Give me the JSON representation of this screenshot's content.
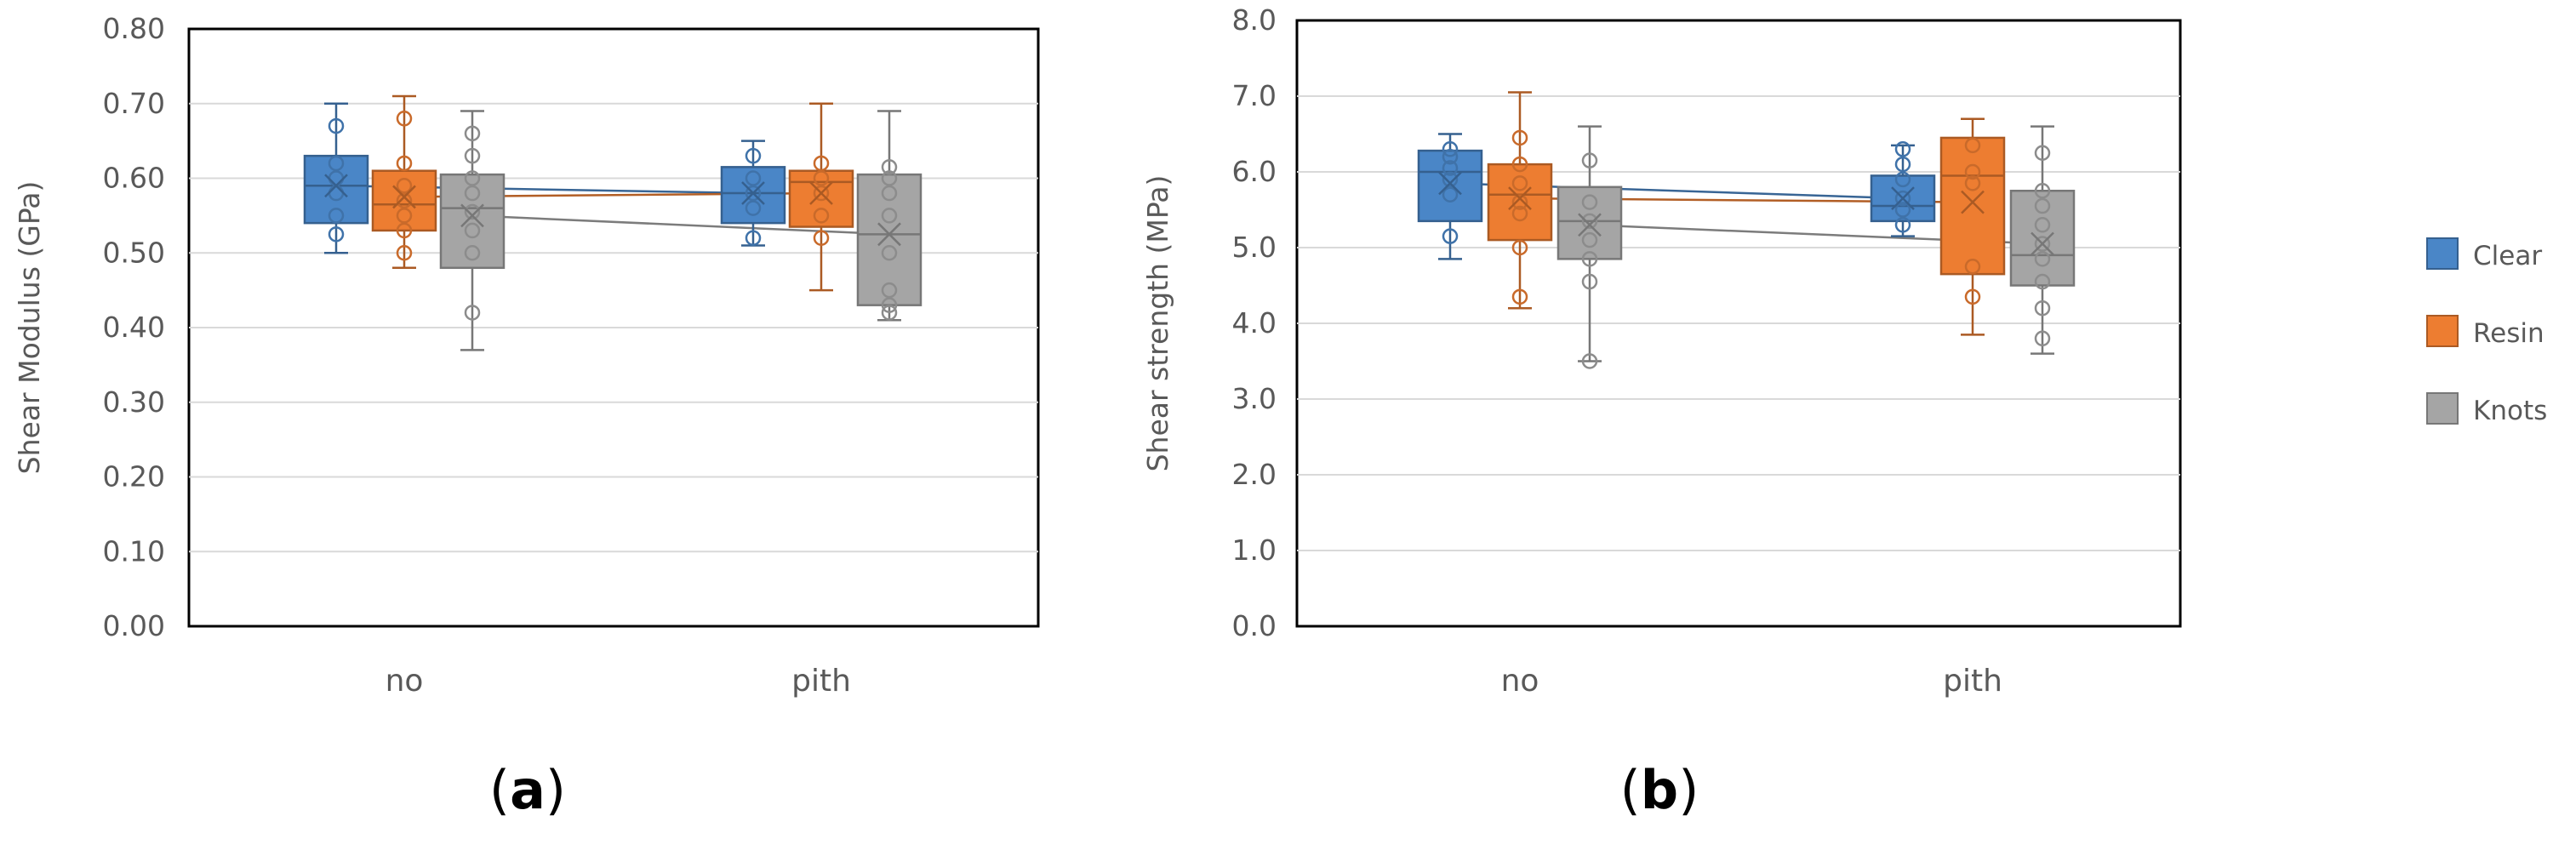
{
  "colors": {
    "Clear": "#4a86c7",
    "Resin": "#ed7d31",
    "Knots": "#a5a5a5"
  },
  "legend": [
    "Clear",
    "Resin",
    "Knots"
  ],
  "chart_data": [
    {
      "type": "box",
      "panel_label": "a",
      "ylabel": "Shear Modulus (GPa)",
      "ylim": [
        0.0,
        0.8
      ],
      "yticks": [
        0.0,
        0.1,
        0.2,
        0.3,
        0.4,
        0.5,
        0.6,
        0.7,
        0.8
      ],
      "ytick_labels": [
        "0.00",
        "0.10",
        "0.20",
        "0.30",
        "0.40",
        "0.50",
        "0.60",
        "0.70",
        "0.80"
      ],
      "categories": [
        "no",
        "pith"
      ],
      "series": [
        {
          "name": "Clear",
          "boxes": [
            {
              "min": 0.5,
              "q1": 0.54,
              "median": 0.59,
              "q3": 0.63,
              "max": 0.7,
              "mean": 0.59,
              "points": [
                0.525,
                0.55,
                0.58,
                0.6,
                0.62,
                0.67
              ]
            },
            {
              "min": 0.51,
              "q1": 0.54,
              "median": 0.58,
              "q3": 0.615,
              "max": 0.65,
              "mean": 0.58,
              "points": [
                0.52,
                0.56,
                0.58,
                0.6,
                0.63
              ]
            }
          ]
        },
        {
          "name": "Resin",
          "boxes": [
            {
              "min": 0.48,
              "q1": 0.53,
              "median": 0.565,
              "q3": 0.61,
              "max": 0.71,
              "mean": 0.575,
              "points": [
                0.5,
                0.53,
                0.55,
                0.57,
                0.59,
                0.62,
                0.68
              ]
            },
            {
              "min": 0.45,
              "q1": 0.535,
              "median": 0.595,
              "q3": 0.61,
              "max": 0.7,
              "mean": 0.58,
              "points": [
                0.52,
                0.55,
                0.58,
                0.6,
                0.62
              ]
            }
          ]
        },
        {
          "name": "Knots",
          "boxes": [
            {
              "min": 0.37,
              "q1": 0.48,
              "median": 0.56,
              "q3": 0.605,
              "max": 0.69,
              "mean": 0.55,
              "points": [
                0.42,
                0.5,
                0.53,
                0.555,
                0.58,
                0.6,
                0.63,
                0.66
              ]
            },
            {
              "min": 0.41,
              "q1": 0.43,
              "median": 0.525,
              "q3": 0.605,
              "max": 0.69,
              "mean": 0.525,
              "points": [
                0.42,
                0.43,
                0.45,
                0.5,
                0.55,
                0.58,
                0.6,
                0.615
              ]
            }
          ]
        }
      ]
    },
    {
      "type": "box",
      "panel_label": "b",
      "ylabel": "Shear strength (MPa)",
      "ylim": [
        0.0,
        8.0
      ],
      "yticks": [
        0.0,
        1.0,
        2.0,
        3.0,
        4.0,
        5.0,
        6.0,
        7.0,
        8.0
      ],
      "ytick_labels": [
        "0.0",
        "1.0",
        "2.0",
        "3.0",
        "4.0",
        "5.0",
        "6.0",
        "7.0",
        "8.0"
      ],
      "categories": [
        "no",
        "pith"
      ],
      "series": [
        {
          "name": "Clear",
          "boxes": [
            {
              "min": 4.85,
              "q1": 5.35,
              "median": 6.0,
              "q3": 6.28,
              "max": 6.5,
              "mean": 5.85,
              "points": [
                5.15,
                5.7,
                5.9,
                6.05,
                6.2,
                6.3
              ]
            },
            {
              "min": 5.15,
              "q1": 5.35,
              "median": 5.55,
              "q3": 5.95,
              "max": 6.35,
              "mean": 5.65,
              "points": [
                5.3,
                5.5,
                5.65,
                5.9,
                6.1,
                6.3
              ]
            }
          ]
        },
        {
          "name": "Resin",
          "boxes": [
            {
              "min": 4.2,
              "q1": 5.1,
              "median": 5.7,
              "q3": 6.1,
              "max": 7.05,
              "mean": 5.65,
              "points": [
                4.35,
                5.0,
                5.45,
                5.6,
                5.85,
                6.1,
                6.45
              ]
            },
            {
              "min": 3.85,
              "q1": 4.65,
              "median": 5.95,
              "q3": 6.45,
              "max": 6.7,
              "mean": 5.6,
              "points": [
                4.35,
                4.75,
                5.85,
                6.0,
                6.35
              ]
            }
          ]
        },
        {
          "name": "Knots",
          "boxes": [
            {
              "min": 3.5,
              "q1": 4.85,
              "median": 5.35,
              "q3": 5.8,
              "max": 6.6,
              "mean": 5.3,
              "points": [
                3.5,
                4.55,
                4.85,
                5.1,
                5.35,
                5.6,
                6.15
              ]
            },
            {
              "min": 3.6,
              "q1": 4.5,
              "median": 4.9,
              "q3": 5.75,
              "max": 6.6,
              "mean": 5.05,
              "points": [
                3.8,
                4.2,
                4.55,
                4.85,
                5.05,
                5.3,
                5.55,
                5.75,
                6.25
              ]
            }
          ]
        }
      ]
    }
  ]
}
